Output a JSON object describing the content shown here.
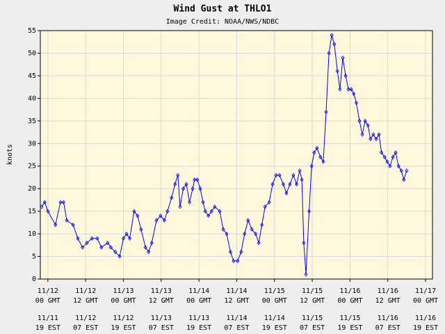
{
  "chart_data": {
    "type": "line",
    "title": "Wind Gust at THLO1",
    "subtitle": "Image Credit: NOAA/NWS/NDBC",
    "y_label": "knots",
    "xlim": [
      -2.4,
      122.2
    ],
    "xticks": [
      {
        "value": 0,
        "label": "11/12"
      },
      {
        "value": 12,
        "label": "11/12"
      },
      {
        "value": 24,
        "label": "11/13"
      },
      {
        "value": 36,
        "label": "11/13"
      },
      {
        "value": 48,
        "label": "11/14"
      },
      {
        "value": 60,
        "label": "11/14"
      },
      {
        "value": 72,
        "label": "11/15"
      },
      {
        "value": 84,
        "label": "11/15"
      },
      {
        "value": 96,
        "label": "11/16"
      },
      {
        "value": 108,
        "label": "11/16"
      },
      {
        "value": 120,
        "label": "11/17"
      }
    ],
    "xtick_times_gmt": [
      "00 GMT",
      "12 GMT",
      "00 GMT",
      "12 GMT",
      "00 GMT",
      "12 GMT",
      "00 GMT",
      "12 GMT",
      "00 GMT",
      "12 GMT",
      "00 GMT"
    ],
    "xtick_dates_est": [
      "11/11",
      "11/12",
      "11/12",
      "11/13",
      "11/13",
      "11/14",
      "11/14",
      "11/15",
      "11/15",
      "11/16",
      "11/16"
    ],
    "xtick_times_est": [
      "19 EST",
      "07 EST",
      "19 EST",
      "07 EST",
      "19 EST",
      "07 EST",
      "19 EST",
      "07 EST",
      "19 EST",
      "07 EST",
      "19 EST"
    ],
    "ylim": [
      0,
      55
    ],
    "yticks": [
      0,
      5,
      10,
      15,
      20,
      25,
      30,
      35,
      40,
      45,
      50,
      55
    ],
    "grid": true,
    "series": [
      {
        "name": "Wind Gust",
        "color": "#0000ff",
        "x": [
          -2,
          -1,
          0,
          2.4,
          4,
          5,
          6,
          8,
          9.5,
          11,
          12.4,
          14,
          15.7,
          17,
          19,
          20,
          21.4,
          22.8,
          24,
          25,
          26,
          27.4,
          28.5,
          29.6,
          31,
          32,
          33,
          34.5,
          35.8,
          37,
          38,
          39.3,
          40.4,
          41.3,
          42,
          43,
          44,
          45,
          46,
          46.6,
          47.5,
          48.4,
          49.3,
          50,
          51,
          52,
          53,
          54.6,
          55.7,
          56.8,
          58,
          59,
          60.3,
          61.4,
          62.5,
          63.6,
          64.8,
          66,
          67,
          68,
          69,
          70.3,
          71.4,
          72.5,
          73.6,
          74.8,
          75.8,
          76.9,
          78,
          79,
          80,
          80.7,
          81.3,
          82,
          83,
          83.8,
          84.6,
          85.5,
          86.6,
          87.5,
          88.4,
          89.3,
          90.2,
          91,
          92,
          92.8,
          93.7,
          94.6,
          95.5,
          96.4,
          97.2,
          98,
          99,
          99.9,
          100.8,
          101.7,
          102.5,
          103.4,
          104.3,
          105.2,
          106,
          107,
          107.8,
          108.7,
          109.6,
          110.5,
          111.4,
          112.3,
          113.1,
          114
        ],
        "values": [
          16,
          17,
          15,
          12,
          17,
          17,
          13,
          12,
          9,
          7,
          8,
          9,
          9,
          7,
          8,
          7,
          6,
          5,
          9,
          10,
          9,
          15,
          14,
          11,
          7,
          6,
          8,
          13,
          14,
          13,
          15,
          18,
          21,
          23,
          16,
          20,
          21,
          17,
          20,
          22,
          22,
          20,
          17,
          15,
          14,
          15,
          16,
          15,
          11,
          10,
          6,
          4,
          4,
          6,
          10,
          13,
          11,
          10,
          8,
          12,
          16,
          17,
          21,
          23,
          23,
          21,
          19,
          21,
          23,
          21,
          24,
          22,
          8,
          1,
          15,
          25,
          28,
          29,
          27,
          26,
          37,
          50,
          54,
          52,
          46,
          42,
          49,
          45,
          42,
          42,
          41,
          39,
          35,
          32,
          35,
          34,
          31,
          32,
          31,
          32,
          28,
          27,
          26,
          25,
          27,
          28,
          25,
          24,
          22,
          24
        ]
      }
    ]
  }
}
